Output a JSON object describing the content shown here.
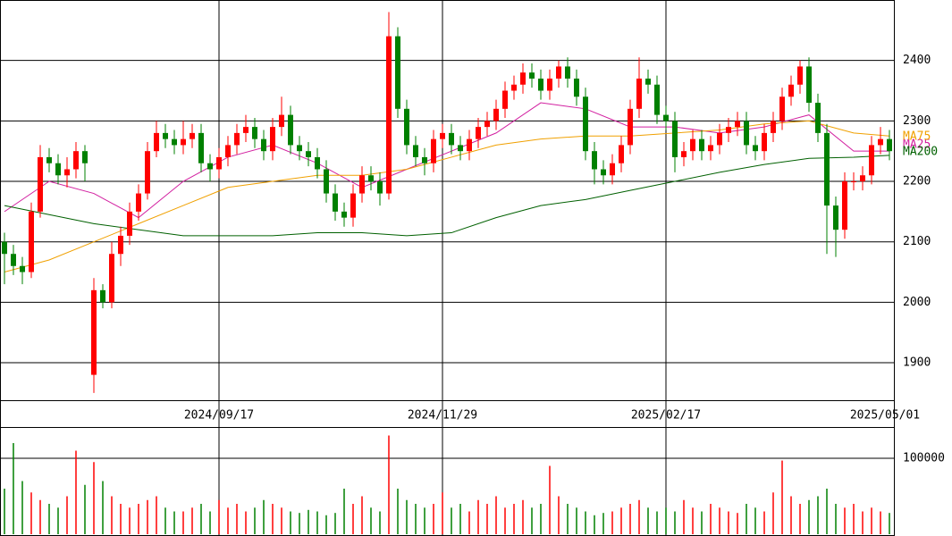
{
  "chart_data": {
    "type": "candlestick",
    "categories": [
      null,
      null,
      null,
      null,
      null,
      null,
      null,
      null,
      null,
      null,
      null,
      null,
      null,
      null,
      null,
      null,
      null,
      null,
      null,
      null,
      null,
      null,
      null,
      null,
      "2024/09/17",
      null,
      null,
      null,
      null,
      null,
      null,
      null,
      null,
      null,
      null,
      null,
      null,
      null,
      null,
      null,
      null,
      null,
      null,
      null,
      null,
      null,
      null,
      null,
      null,
      "2024/11/29",
      null,
      null,
      null,
      null,
      null,
      null,
      null,
      null,
      null,
      null,
      null,
      null,
      null,
      null,
      null,
      null,
      null,
      null,
      null,
      null,
      null,
      null,
      null,
      null,
      "2025/02/17",
      null,
      null,
      null,
      null,
      null,
      null,
      null,
      null,
      null,
      null,
      null,
      null,
      null,
      null,
      null,
      null,
      null,
      null,
      null,
      null,
      null,
      null,
      null,
      null,
      "2025/05/01"
    ],
    "open": [
      2100,
      2080,
      2060,
      2050,
      2150,
      2240,
      2230,
      2210,
      2220,
      2250,
      1880,
      2020,
      2000,
      2080,
      2110,
      2150,
      2180,
      2250,
      2280,
      2270,
      2260,
      2270,
      2280,
      2230,
      2220,
      2240,
      2260,
      2280,
      2290,
      2270,
      2250,
      2290,
      2310,
      2260,
      2250,
      2240,
      2220,
      2180,
      2150,
      2140,
      2180,
      2210,
      2200,
      2180,
      2440,
      2320,
      2260,
      2240,
      2230,
      2270,
      2280,
      2260,
      2250,
      2270,
      2290,
      2300,
      2320,
      2350,
      2360,
      2380,
      2370,
      2350,
      2370,
      2390,
      2370,
      2340,
      2250,
      2220,
      2210,
      2230,
      2260,
      2320,
      2370,
      2360,
      2310,
      2300,
      2240,
      2250,
      2270,
      2250,
      2260,
      2280,
      2290,
      2300,
      2260,
      2250,
      2280,
      2300,
      2340,
      2360,
      2390,
      2330,
      2280,
      2160,
      2120,
      2200,
      2200,
      2210,
      2260,
      2270
    ],
    "high": [
      2115,
      2095,
      2075,
      2165,
      2260,
      2255,
      2245,
      2240,
      2265,
      2260,
      2040,
      2030,
      2100,
      2125,
      2165,
      2195,
      2265,
      2300,
      2295,
      2285,
      2300,
      2295,
      2295,
      2245,
      2255,
      2275,
      2295,
      2310,
      2305,
      2285,
      2305,
      2340,
      2325,
      2275,
      2265,
      2255,
      2235,
      2195,
      2165,
      2195,
      2225,
      2225,
      2215,
      2480,
      2455,
      2335,
      2275,
      2255,
      2285,
      2295,
      2295,
      2275,
      2285,
      2305,
      2315,
      2335,
      2365,
      2375,
      2395,
      2395,
      2385,
      2385,
      2400,
      2405,
      2385,
      2355,
      2265,
      2235,
      2245,
      2275,
      2335,
      2405,
      2385,
      2375,
      2325,
      2315,
      2265,
      2285,
      2285,
      2275,
      2295,
      2305,
      2315,
      2315,
      2275,
      2295,
      2315,
      2355,
      2375,
      2400,
      2405,
      2345,
      2295,
      2175,
      2215,
      2215,
      2225,
      2275,
      2290,
      2285
    ],
    "low": [
      2030,
      2045,
      2030,
      2040,
      2140,
      2215,
      2195,
      2190,
      2205,
      2200,
      1850,
      1990,
      1990,
      2060,
      2095,
      2135,
      2170,
      2240,
      2255,
      2245,
      2245,
      2255,
      2215,
      2200,
      2205,
      2225,
      2245,
      2265,
      2255,
      2235,
      2235,
      2275,
      2245,
      2235,
      2225,
      2205,
      2165,
      2135,
      2125,
      2125,
      2165,
      2185,
      2160,
      2170,
      2305,
      2245,
      2225,
      2210,
      2215,
      2255,
      2245,
      2235,
      2235,
      2255,
      2275,
      2285,
      2305,
      2335,
      2345,
      2355,
      2335,
      2335,
      2355,
      2355,
      2325,
      2235,
      2195,
      2195,
      2195,
      2215,
      2245,
      2305,
      2345,
      2295,
      2285,
      2215,
      2225,
      2235,
      2235,
      2235,
      2245,
      2265,
      2275,
      2245,
      2235,
      2235,
      2265,
      2285,
      2325,
      2345,
      2315,
      2265,
      2080,
      2075,
      2105,
      2185,
      2185,
      2195,
      2245,
      2235
    ],
    "close": [
      2080,
      2060,
      2050,
      2150,
      2240,
      2230,
      2210,
      2220,
      2250,
      2230,
      2020,
      2000,
      2080,
      2110,
      2150,
      2180,
      2250,
      2280,
      2270,
      2260,
      2270,
      2280,
      2230,
      2220,
      2240,
      2260,
      2280,
      2290,
      2270,
      2250,
      2290,
      2310,
      2260,
      2250,
      2240,
      2220,
      2180,
      2150,
      2140,
      2180,
      2210,
      2200,
      2180,
      2440,
      2320,
      2260,
      2240,
      2230,
      2270,
      2280,
      2260,
      2250,
      2270,
      2290,
      2300,
      2320,
      2350,
      2360,
      2380,
      2370,
      2350,
      2370,
      2390,
      2370,
      2340,
      2250,
      2220,
      2210,
      2230,
      2260,
      2320,
      2370,
      2360,
      2310,
      2300,
      2240,
      2250,
      2270,
      2250,
      2260,
      2280,
      2290,
      2300,
      2260,
      2250,
      2280,
      2300,
      2340,
      2360,
      2390,
      2330,
      2280,
      2160,
      2120,
      2200,
      2200,
      2210,
      2260,
      2270,
      2250
    ],
    "up_color": "#ff0000",
    "down_color": "#008000",
    "ylim": [
      1838,
      2500
    ],
    "yticks": [
      1900,
      2000,
      2100,
      2200,
      2300,
      2400
    ],
    "moving_averages": [
      {
        "name": "MA25",
        "color": "#d21fa0",
        "x": [
          0,
          5,
          10,
          15,
          20,
          25,
          30,
          35,
          40,
          45,
          50,
          55,
          60,
          65,
          70,
          75,
          80,
          85,
          90,
          95,
          99
        ],
        "values": [
          2150,
          2200,
          2180,
          2140,
          2200,
          2240,
          2260,
          2230,
          2190,
          2220,
          2250,
          2280,
          2330,
          2320,
          2290,
          2290,
          2280,
          2290,
          2310,
          2250,
          2250
        ]
      },
      {
        "name": "MA75",
        "color": "#f0a000",
        "x": [
          0,
          5,
          10,
          15,
          20,
          25,
          30,
          35,
          40,
          45,
          50,
          55,
          60,
          65,
          70,
          75,
          80,
          85,
          90,
          95,
          99
        ],
        "values": [
          2050,
          2070,
          2100,
          2130,
          2160,
          2190,
          2200,
          2210,
          2210,
          2220,
          2240,
          2260,
          2270,
          2275,
          2275,
          2280,
          2285,
          2295,
          2300,
          2280,
          2275
        ]
      },
      {
        "name": "MA200",
        "color": "#006000",
        "x": [
          0,
          5,
          10,
          15,
          20,
          25,
          30,
          35,
          40,
          45,
          50,
          55,
          60,
          65,
          70,
          75,
          80,
          85,
          90,
          95,
          99
        ],
        "values": [
          2160,
          2145,
          2130,
          2120,
          2110,
          2110,
          2110,
          2115,
          2115,
          2110,
          2115,
          2140,
          2160,
          2170,
          2185,
          2200,
          2215,
          2228,
          2238,
          2240,
          2243
        ]
      }
    ],
    "volume": [
      60000,
      120000,
      70000,
      55000,
      45000,
      40000,
      35000,
      50000,
      110000,
      65000,
      95000,
      70000,
      50000,
      40000,
      35000,
      40000,
      45000,
      50000,
      35000,
      30000,
      30000,
      35000,
      40000,
      30000,
      45000,
      35000,
      40000,
      30000,
      35000,
      45000,
      40000,
      35000,
      30000,
      28000,
      32000,
      30000,
      25000,
      28000,
      60000,
      40000,
      50000,
      35000,
      30000,
      130000,
      60000,
      45000,
      40000,
      35000,
      40000,
      55000,
      35000,
      40000,
      30000,
      45000,
      40000,
      50000,
      35000,
      40000,
      45000,
      35000,
      40000,
      90000,
      50000,
      40000,
      35000,
      30000,
      25000,
      28000,
      30000,
      35000,
      40000,
      45000,
      35000,
      30000,
      35000,
      30000,
      45000,
      35000,
      30000,
      40000,
      35000,
      30000,
      28000,
      40000,
      35000,
      30000,
      55000,
      97000,
      50000,
      40000,
      45000,
      50000,
      60000,
      40000,
      35000,
      40000,
      30000,
      35000,
      30000,
      28000
    ],
    "volume_ylim": [
      0,
      140000
    ],
    "volume_yticks": [
      100000
    ]
  }
}
